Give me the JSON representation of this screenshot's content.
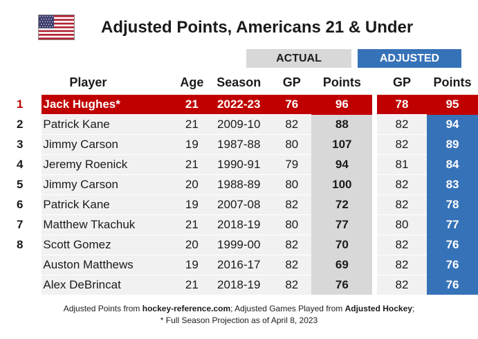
{
  "title": "Adjusted Points, Americans 21 & Under",
  "flag_icon": "us-flag-icon",
  "groups": {
    "actual": "ACTUAL",
    "adjusted": "ADJUSTED"
  },
  "columns": {
    "player": "Player",
    "age": "Age",
    "season": "Season",
    "actual_gp": "GP",
    "actual_points": "Points",
    "adjusted_gp": "GP",
    "adjusted_points": "Points"
  },
  "colors": {
    "highlight_row": "#c00000",
    "actual_header": "#d8d8d8",
    "adjusted": "#3672b8"
  },
  "chart_data": {
    "type": "table",
    "title": "Adjusted Points, Americans 21 & Under",
    "column_groups": [
      {
        "name": "ACTUAL",
        "columns": [
          "GP",
          "Points"
        ]
      },
      {
        "name": "ADJUSTED",
        "columns": [
          "GP",
          "Points"
        ]
      }
    ],
    "columns": [
      "Player",
      "Age",
      "Season",
      "GP",
      "Points",
      "GP",
      "Points"
    ],
    "rows": [
      {
        "rank": "1",
        "player": "Jack Hughes*",
        "age": 21,
        "season": "2022-23",
        "actual_gp": 76,
        "actual_points": 96,
        "adjusted_gp": 78,
        "adjusted_points": 95,
        "highlight": true
      },
      {
        "rank": "2",
        "player": "Patrick Kane",
        "age": 21,
        "season": "2009-10",
        "actual_gp": 82,
        "actual_points": 88,
        "adjusted_gp": 82,
        "adjusted_points": 94
      },
      {
        "rank": "3",
        "player": "Jimmy Carson",
        "age": 19,
        "season": "1987-88",
        "actual_gp": 80,
        "actual_points": 107,
        "adjusted_gp": 82,
        "adjusted_points": 89
      },
      {
        "rank": "4",
        "player": "Jeremy Roenick",
        "age": 21,
        "season": "1990-91",
        "actual_gp": 79,
        "actual_points": 94,
        "adjusted_gp": 81,
        "adjusted_points": 84
      },
      {
        "rank": "5",
        "player": "Jimmy Carson",
        "age": 20,
        "season": "1988-89",
        "actual_gp": 80,
        "actual_points": 100,
        "adjusted_gp": 82,
        "adjusted_points": 83
      },
      {
        "rank": "6",
        "player": "Patrick Kane",
        "age": 19,
        "season": "2007-08",
        "actual_gp": 82,
        "actual_points": 72,
        "adjusted_gp": 82,
        "adjusted_points": 78
      },
      {
        "rank": "7",
        "player": "Matthew Tkachuk",
        "age": 21,
        "season": "2018-19",
        "actual_gp": 80,
        "actual_points": 77,
        "adjusted_gp": 80,
        "adjusted_points": 77
      },
      {
        "rank": "8",
        "player": "Scott Gomez",
        "age": 20,
        "season": "1999-00",
        "actual_gp": 82,
        "actual_points": 70,
        "adjusted_gp": 82,
        "adjusted_points": 76
      },
      {
        "rank": "",
        "player": "Auston Matthews",
        "age": 19,
        "season": "2016-17",
        "actual_gp": 82,
        "actual_points": 69,
        "adjusted_gp": 82,
        "adjusted_points": 76
      },
      {
        "rank": "",
        "player": "Alex DeBrincat",
        "age": 21,
        "season": "2018-19",
        "actual_gp": 82,
        "actual_points": 76,
        "adjusted_gp": 82,
        "adjusted_points": 76
      }
    ]
  },
  "footer": {
    "line1": [
      {
        "text": "Adjusted Points from ",
        "bold": false
      },
      {
        "text": "hockey-reference.com",
        "bold": true
      },
      {
        "text": "; Adjusted Games Played from ",
        "bold": false
      },
      {
        "text": "Adjusted Hockey",
        "bold": true
      },
      {
        "text": ";",
        "bold": false
      }
    ],
    "line2": "* Full Season Projection as of April 8, 2023"
  }
}
